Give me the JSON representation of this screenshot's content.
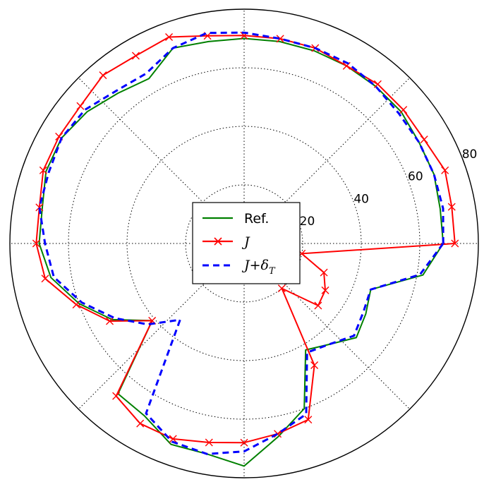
{
  "chart_data": {
    "type": "polar-line",
    "title": "",
    "radial_axis": {
      "range": [
        0,
        80
      ],
      "ticks": [
        20,
        40,
        60,
        80
      ],
      "tick_labels": [
        "20",
        "40",
        "60",
        "80"
      ]
    },
    "angular_gridlines_deg": [
      0,
      45,
      90,
      135,
      180,
      225,
      270,
      315
    ],
    "grid": true,
    "legend": {
      "position": "center",
      "entries": [
        {
          "series": 0,
          "label": "Ref."
        },
        {
          "series": 1,
          "label": "J",
          "label_symbol": "J"
        },
        {
          "series": 2,
          "label": "J+δ_T",
          "label_symbol": "J+δ",
          "label_subscript": "T"
        }
      ]
    },
    "series": [
      {
        "color": "#008000",
        "line_style": "solid",
        "marker": "none",
        "angle_deg": [
          0,
          10,
          20,
          30,
          40,
          50,
          60,
          70,
          80,
          90,
          100,
          110,
          120,
          130,
          140,
          150,
          160,
          170,
          180,
          190,
          200,
          210,
          220,
          230,
          240,
          250,
          260,
          270,
          280,
          290,
          300,
          310,
          320,
          330,
          340,
          350
        ],
        "r": [
          68,
          68,
          69,
          69,
          70,
          70,
          70,
          70,
          70,
          70,
          70,
          71,
          65,
          67,
          70,
          72,
          72,
          70,
          70,
          67,
          60,
          52,
          41,
          67,
          68,
          73,
          73,
          76,
          67,
          60,
          42,
          45,
          50,
          48,
          46,
          62
        ]
      },
      {
        "color": "#ff0000",
        "line_style": "solid",
        "marker": "x",
        "angle_deg": [
          0,
          10,
          20,
          30,
          40,
          50,
          60,
          70,
          80,
          90,
          100,
          110,
          120,
          130,
          140,
          150,
          160,
          170,
          180,
          190,
          200,
          210,
          220,
          230,
          240,
          250,
          260,
          270,
          280,
          290,
          300,
          310,
          320,
          330,
          340,
          350
        ],
        "r": [
          72,
          72,
          73,
          71,
          71,
          71,
          70,
          71,
          71,
          71,
          72,
          75,
          74,
          75,
          73,
          73,
          73,
          71,
          71,
          69,
          61,
          53,
          41,
          68,
          71,
          71,
          69,
          68,
          66,
          64,
          48,
          20,
          33,
          32,
          29,
          20
        ]
      },
      {
        "color": "#0000ff",
        "line_style": "dashed",
        "marker": "none",
        "angle_deg": [
          0,
          10,
          20,
          30,
          40,
          50,
          60,
          70,
          80,
          90,
          100,
          110,
          120,
          130,
          140,
          150,
          160,
          170,
          180,
          190,
          200,
          210,
          220,
          230,
          240,
          250,
          260,
          270,
          280,
          290,
          300,
          310,
          320,
          330,
          340,
          350
        ],
        "r": [
          68,
          69,
          69,
          69,
          69,
          70,
          71,
          71,
          71,
          72,
          73,
          71,
          67,
          68,
          71,
          72,
          71,
          71,
          68,
          66,
          59,
          51,
          43,
          34,
          67,
          72,
          73,
          71,
          66,
          62,
          43,
          45,
          49,
          47,
          46,
          61
        ]
      }
    ]
  }
}
